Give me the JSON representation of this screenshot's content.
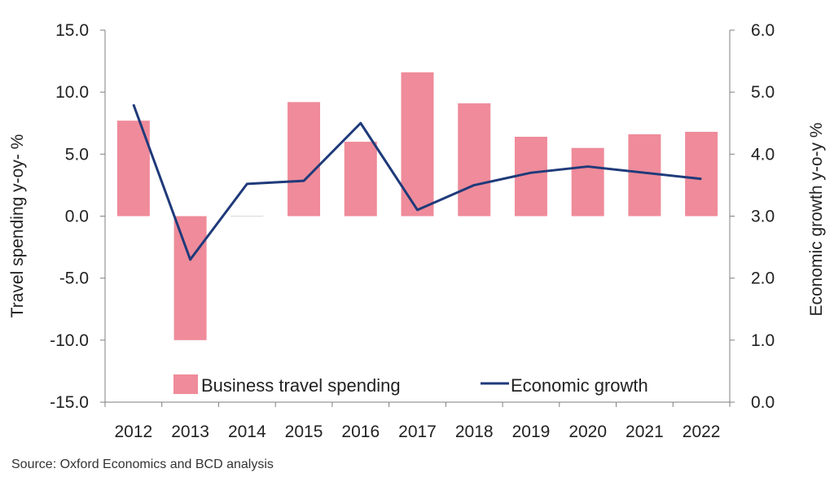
{
  "chart_data": {
    "type": "bar",
    "categories": [
      "2012",
      "2013",
      "2014",
      "2015",
      "2016",
      "2017",
      "2018",
      "2019",
      "2020",
      "2021",
      "2022"
    ],
    "series": [
      {
        "name": "Business travel spending",
        "type": "bar",
        "axis": "left",
        "color": "#ef8b9a",
        "values": [
          7.7,
          -10.0,
          0.0,
          9.2,
          6.0,
          11.6,
          9.1,
          6.4,
          5.5,
          6.6,
          6.8
        ]
      },
      {
        "name": "Economic growth",
        "type": "line",
        "axis": "right",
        "color": "#1f3a7a",
        "values": [
          4.8,
          2.3,
          3.52,
          3.57,
          4.5,
          3.1,
          3.5,
          3.7,
          3.8,
          3.7,
          3.6
        ]
      }
    ],
    "ylabel": "Travel spending y-oy- %",
    "y2label": "Economic growth y-o-y %",
    "ylim": [
      -15,
      15
    ],
    "y2lim": [
      0,
      6
    ],
    "yticks": [
      "15.0",
      "10.0",
      "5.0",
      "0.0",
      "-5.0",
      "-10.0",
      "-15.0"
    ],
    "y2ticks": [
      "6.0",
      "5.0",
      "4.0",
      "3.0",
      "2.0",
      "1.0",
      "0.0"
    ],
    "legend_position": "bottom-center",
    "grid": false
  },
  "source": "Source: Oxford Economics and BCD analysis"
}
